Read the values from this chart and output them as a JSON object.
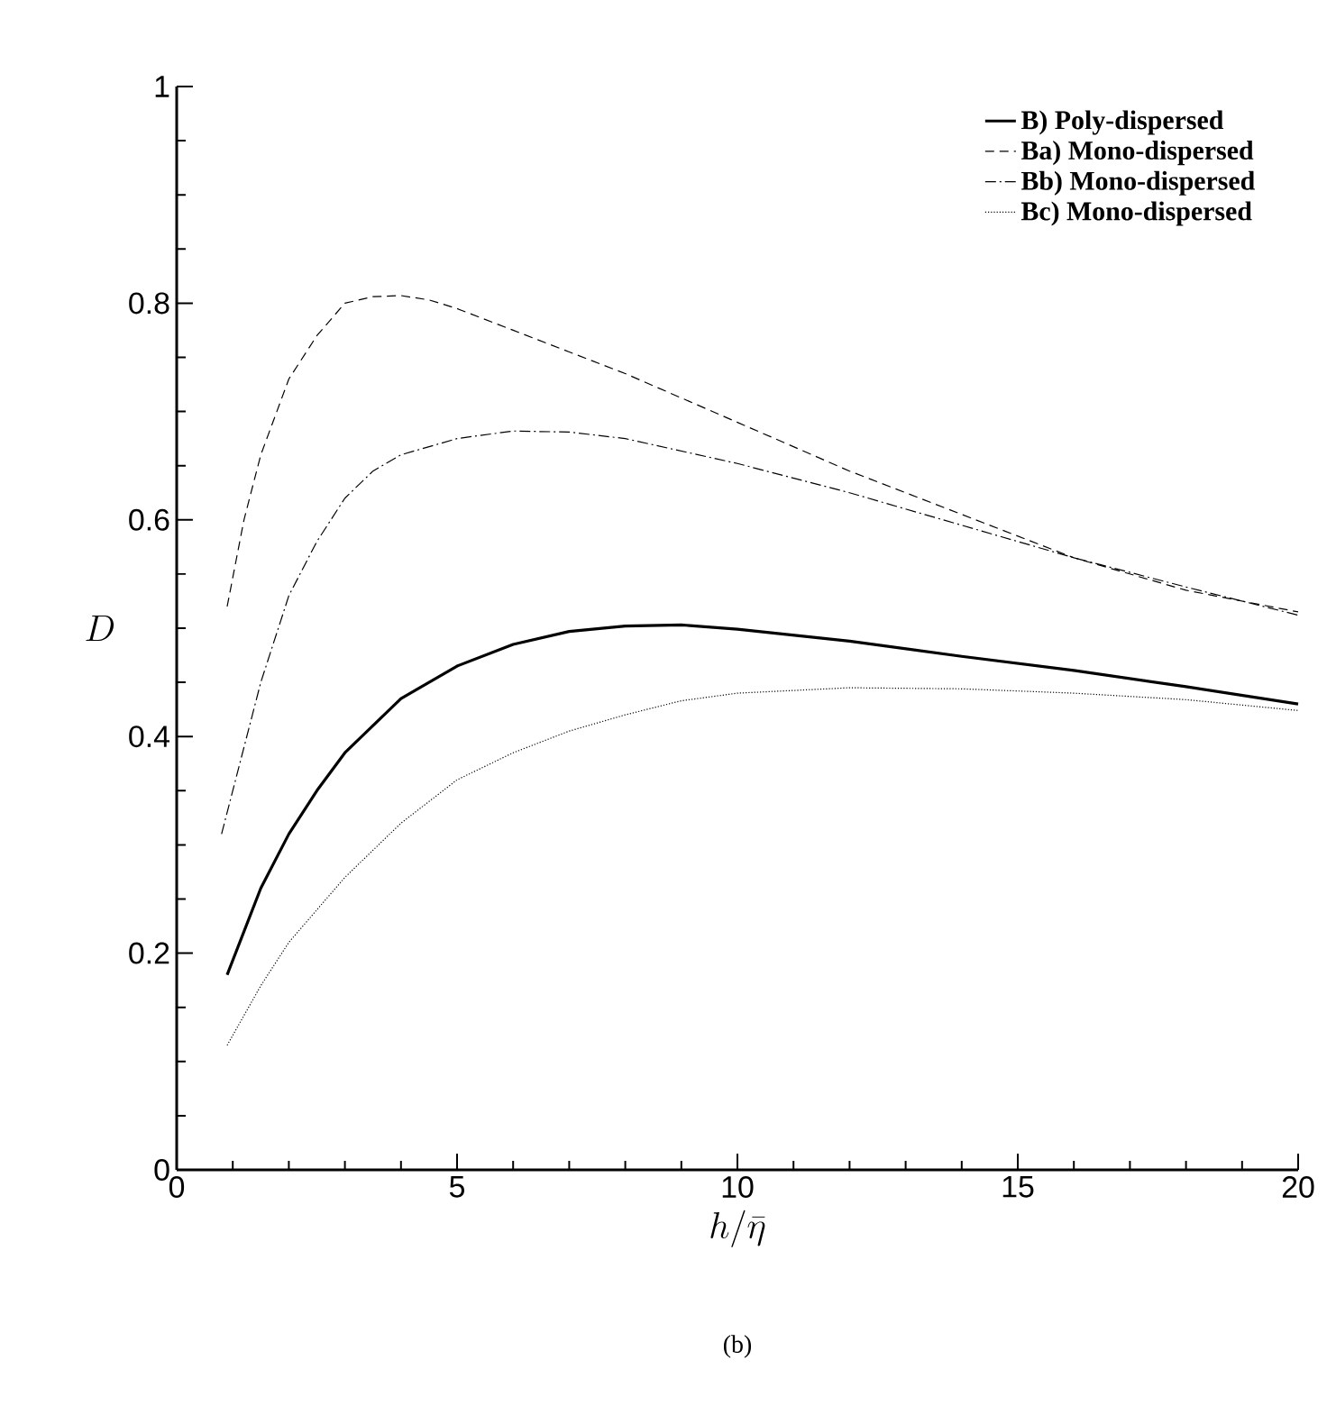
{
  "chart_data": {
    "type": "line",
    "xlabel": "h/\\bar{\\eta}",
    "ylabel": "D",
    "annotations": [
      "(b)"
    ],
    "xlim": [
      0,
      20
    ],
    "xticks": [
      0,
      5,
      10,
      15,
      20
    ],
    "ylim": [
      0,
      1
    ],
    "yticks": [
      0,
      0.2,
      0.4,
      0.6,
      0.8,
      1
    ],
    "legend": "top right",
    "marker": "none",
    "series": [
      {
        "name": "B)  Poly-dispersed",
        "color": "#000000",
        "line_style": "solid",
        "x": [
          0.9,
          1.5,
          2,
          2.5,
          3,
          4,
          5,
          6,
          7,
          8,
          9,
          10,
          12,
          14,
          16,
          18,
          20
        ],
        "values": [
          0.18,
          0.26,
          0.31,
          0.35,
          0.385,
          0.435,
          0.465,
          0.485,
          0.497,
          0.502,
          0.503,
          0.499,
          0.488,
          0.474,
          0.461,
          0.446,
          0.43
        ]
      },
      {
        "name": "Ba)  Mono-dispersed",
        "color": "#000000",
        "line_style": "dashed",
        "x": [
          0.9,
          1.2,
          1.5,
          2,
          2.5,
          3,
          3.5,
          4,
          4.5,
          5,
          6,
          7,
          8,
          10,
          12,
          14,
          16,
          18,
          20
        ],
        "values": [
          0.52,
          0.6,
          0.66,
          0.73,
          0.77,
          0.8,
          0.806,
          0.807,
          0.803,
          0.795,
          0.775,
          0.755,
          0.735,
          0.69,
          0.645,
          0.605,
          0.565,
          0.535,
          0.515
        ]
      },
      {
        "name": "Bb)  Mono-dispersed",
        "color": "#000000",
        "line_style": "dashdot",
        "x": [
          0.8,
          1.2,
          1.5,
          2,
          2.5,
          3,
          3.5,
          4,
          5,
          6,
          7,
          8,
          10,
          12,
          14,
          16,
          18,
          20
        ],
        "values": [
          0.31,
          0.39,
          0.45,
          0.53,
          0.58,
          0.62,
          0.645,
          0.66,
          0.675,
          0.682,
          0.681,
          0.675,
          0.652,
          0.625,
          0.595,
          0.565,
          0.538,
          0.512
        ]
      },
      {
        "name": "Bc)  Mono-dispersed",
        "color": "#000000",
        "line_style": "dotted",
        "x": [
          0.9,
          1.5,
          2,
          2.5,
          3,
          4,
          5,
          6,
          7,
          8,
          9,
          10,
          12,
          14,
          16,
          18,
          20
        ],
        "values": [
          0.115,
          0.17,
          0.21,
          0.24,
          0.27,
          0.32,
          0.36,
          0.385,
          0.405,
          0.42,
          0.433,
          0.44,
          0.445,
          0.444,
          0.44,
          0.434,
          0.424
        ]
      }
    ]
  }
}
